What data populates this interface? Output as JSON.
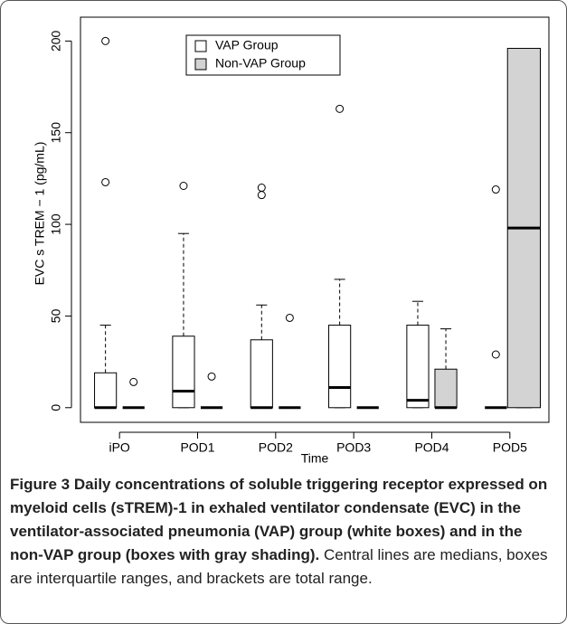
{
  "chart_data": {
    "type": "boxplot",
    "categories": [
      "iPO",
      "POD1",
      "POD2",
      "POD3",
      "POD4",
      "POD5"
    ],
    "x_label": "Time",
    "y_label": "EVC s TREM − 1 (pg/mL)",
    "ylim": [
      -8,
      213
    ],
    "yticks": [
      0,
      50,
      100,
      150,
      200
    ],
    "legend": "top-left",
    "series": [
      {
        "name": "VAP Group",
        "color": "#ffffff",
        "boxes": [
          {
            "min": 0,
            "q1": 0,
            "median": 0,
            "q3": 19,
            "max": 45,
            "outliers": [
              123,
              200
            ]
          },
          {
            "min": 0,
            "q1": 0,
            "median": 9,
            "q3": 39,
            "max": 95,
            "outliers": [
              121
            ]
          },
          {
            "min": 0,
            "q1": 0,
            "median": 0,
            "q3": 37,
            "max": 56,
            "outliers": [
              116,
              120
            ]
          },
          {
            "min": 0,
            "q1": 0,
            "median": 11,
            "q3": 45,
            "max": 70,
            "outliers": [
              163
            ]
          },
          {
            "min": 0,
            "q1": 0,
            "median": 4,
            "q3": 45,
            "max": 58,
            "outliers": []
          },
          {
            "min": 0,
            "q1": 0,
            "median": 0,
            "q3": 0,
            "max": 0,
            "outliers": [
              29,
              119
            ]
          }
        ]
      },
      {
        "name": "Non-VAP Group",
        "color": "#d3d3d3",
        "boxes": [
          {
            "min": 0,
            "q1": 0,
            "median": 0,
            "q3": 0,
            "max": 0,
            "outliers": [
              14
            ]
          },
          {
            "min": 0,
            "q1": 0,
            "median": 0,
            "q3": 0,
            "max": 0,
            "outliers": [
              17
            ]
          },
          {
            "min": 0,
            "q1": 0,
            "median": 0,
            "q3": 0,
            "max": 0,
            "outliers": [
              49
            ]
          },
          {
            "min": 0,
            "q1": 0,
            "median": 0,
            "q3": 0,
            "max": 0,
            "outliers": []
          },
          {
            "min": 0,
            "q1": 0,
            "median": 0,
            "q3": 21,
            "max": 43,
            "outliers": []
          },
          {
            "min": 0,
            "q1": 0,
            "median": 98,
            "q3": 196,
            "max": 196,
            "outliers": []
          }
        ]
      }
    ]
  },
  "caption": {
    "label": "Figure 3",
    "heading": "Daily concentrations of soluble triggering receptor expressed on myeloid cells (sTREM)-1 in exhaled ventilator condensate (EVC) in the ventilator-associated pneumonia (VAP) group (white boxes) and in the non-VAP group (boxes with gray shading).",
    "body": "Central lines are medians, boxes are interquartile ranges, and brackets are total range."
  }
}
